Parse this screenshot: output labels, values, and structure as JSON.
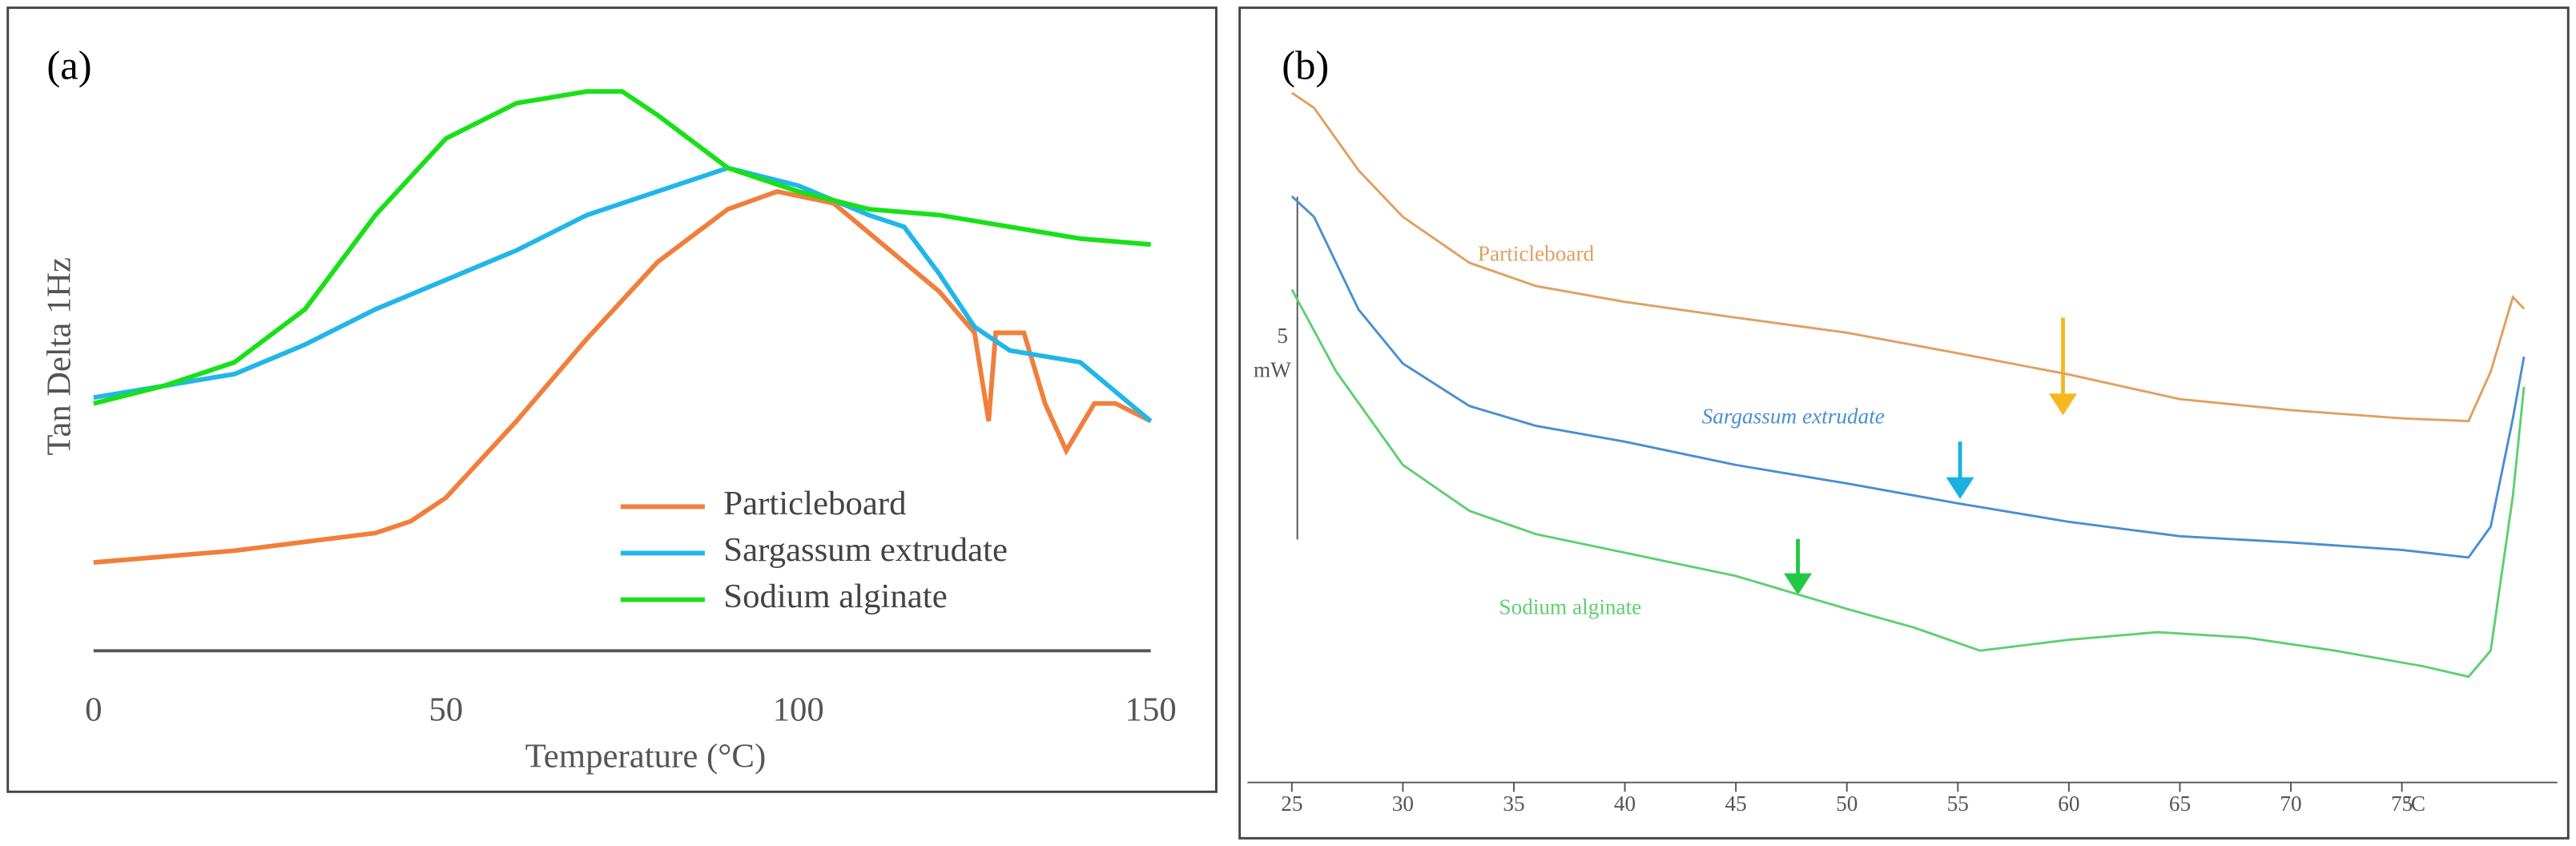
{
  "chart_data": [
    {
      "type": "line",
      "panel_label": "(a)",
      "ylabel": "Tan Delta 1Hz",
      "xlabel": "Temperature (°C)",
      "xlim": [
        0,
        150
      ],
      "xticks": [
        0,
        50,
        100,
        150
      ],
      "ylim": [
        0,
        1
      ],
      "legend": "lower right",
      "series": [
        {
          "name": "Particleboard",
          "color": "#f07f3c",
          "x": [
            0,
            20,
            40,
            45,
            50,
            60,
            70,
            80,
            90,
            97,
            105,
            110,
            115,
            120,
            125,
            127,
            128,
            132,
            135,
            138,
            142,
            145,
            150
          ],
          "values": [
            0.15,
            0.17,
            0.2,
            0.22,
            0.26,
            0.39,
            0.53,
            0.66,
            0.75,
            0.78,
            0.76,
            0.71,
            0.66,
            0.61,
            0.54,
            0.39,
            0.54,
            0.54,
            0.42,
            0.34,
            0.42,
            0.42,
            0.39
          ]
        },
        {
          "name": "Sargassum extrudate",
          "color": "#21b6e8",
          "x": [
            0,
            10,
            20,
            30,
            40,
            50,
            60,
            70,
            80,
            90,
            100,
            110,
            115,
            120,
            125,
            130,
            140,
            150
          ],
          "values": [
            0.43,
            0.45,
            0.47,
            0.52,
            0.58,
            0.63,
            0.68,
            0.74,
            0.78,
            0.82,
            0.79,
            0.74,
            0.72,
            0.64,
            0.55,
            0.51,
            0.49,
            0.39
          ]
        },
        {
          "name": "Sodium alginate",
          "color": "#18e018",
          "x": [
            0,
            10,
            20,
            30,
            40,
            50,
            60,
            70,
            75,
            80,
            90,
            100,
            110,
            120,
            130,
            140,
            150
          ],
          "values": [
            0.42,
            0.45,
            0.49,
            0.58,
            0.74,
            0.87,
            0.93,
            0.95,
            0.95,
            0.91,
            0.82,
            0.78,
            0.75,
            0.74,
            0.72,
            0.7,
            0.69
          ]
        }
      ]
    },
    {
      "type": "line",
      "panel_label": "(b)",
      "xlabel": "°C",
      "scale_bar": 5,
      "scale_bar_unit": "mW",
      "xlim": [
        23,
        82
      ],
      "xticks": [
        25,
        30,
        35,
        40,
        45,
        50,
        55,
        60,
        65,
        70,
        75
      ],
      "ylim": [
        0,
        10.4
      ],
      "series": [
        {
          "name": "Particleboard",
          "color": "#e0a060",
          "x": [
            25,
            26,
            28,
            30,
            33,
            36,
            40,
            45,
            50,
            55,
            60,
            65,
            70,
            75,
            78,
            79,
            80,
            80.5
          ],
          "values": [
            9.95,
            9.73,
            8.82,
            8.14,
            7.47,
            7.13,
            6.9,
            6.67,
            6.45,
            6.15,
            5.84,
            5.48,
            5.32,
            5.2,
            5.16,
            5.88,
            6.97,
            6.8
          ]
        },
        {
          "name": "Sargassum extrudate",
          "color": "#4a8fd0",
          "x": [
            25,
            26,
            28,
            30,
            33,
            36,
            40,
            45,
            50,
            55,
            60,
            65,
            70,
            75,
            78,
            79,
            80,
            80.5
          ],
          "values": [
            8.44,
            8.14,
            6.79,
            6.0,
            5.38,
            5.09,
            4.86,
            4.52,
            4.25,
            3.96,
            3.69,
            3.48,
            3.39,
            3.28,
            3.17,
            3.62,
            5.2,
            6.1
          ]
        },
        {
          "name": "Sodium alginate",
          "color": "#5cd070",
          "x": [
            25,
            27,
            30,
            33,
            36,
            40,
            45,
            50,
            53,
            56,
            60,
            64,
            68,
            72,
            76,
            78,
            79,
            80,
            80.5
          ],
          "values": [
            7.08,
            5.88,
            4.52,
            3.85,
            3.51,
            3.24,
            2.9,
            2.42,
            2.15,
            1.81,
            1.97,
            2.08,
            2.0,
            1.81,
            1.58,
            1.43,
            1.81,
            4.07,
            5.66
          ]
        }
      ]
    }
  ]
}
